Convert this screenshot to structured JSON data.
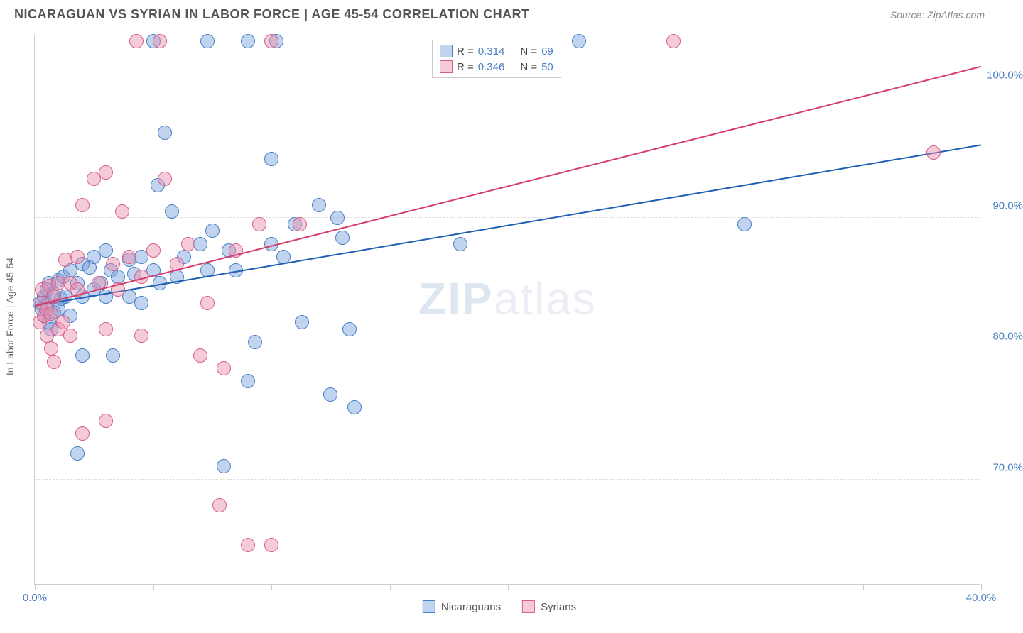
{
  "header": {
    "title": "NICARAGUAN VS SYRIAN IN LABOR FORCE | AGE 45-54 CORRELATION CHART",
    "source": "Source: ZipAtlas.com"
  },
  "watermark": {
    "bold": "ZIP",
    "light": "atlas"
  },
  "chart": {
    "type": "scatter",
    "y_axis_title": "In Labor Force | Age 45-54",
    "xlim": [
      0,
      40
    ],
    "ylim": [
      62,
      104
    ],
    "x_ticks": [
      0,
      5,
      10,
      15,
      20,
      25,
      30,
      35,
      40
    ],
    "x_tick_labels": {
      "0": "0.0%",
      "40": "40.0%"
    },
    "y_gridlines": [
      70,
      80,
      90,
      100
    ],
    "y_tick_labels": {
      "70": "70.0%",
      "80": "80.0%",
      "90": "90.0%",
      "100": "100.0%"
    },
    "background_color": "#ffffff",
    "grid_color": "#dddddd",
    "axis_line_color": "#cccccc",
    "tick_label_color": "#4a7fc4",
    "point_radius": 10,
    "series": [
      {
        "name": "Nicaraguans",
        "fill": "rgba(115, 160, 220, 0.45)",
        "stroke": "#4a7fc4",
        "R": "0.314",
        "N": "69",
        "trend": {
          "x1": 0,
          "y1": 83.2,
          "x2": 40,
          "y2": 95.5,
          "color": "#1e5fb3"
        },
        "points": [
          [
            0.2,
            83.5
          ],
          [
            0.3,
            83.0
          ],
          [
            0.4,
            82.5
          ],
          [
            0.4,
            84.0
          ],
          [
            0.5,
            83.3
          ],
          [
            0.5,
            84.5
          ],
          [
            0.6,
            85.0
          ],
          [
            0.6,
            82.0
          ],
          [
            0.7,
            81.5
          ],
          [
            0.8,
            82.8
          ],
          [
            0.8,
            84.2
          ],
          [
            1.0,
            85.2
          ],
          [
            1.0,
            83.0
          ],
          [
            1.1,
            83.8
          ],
          [
            1.2,
            85.5
          ],
          [
            1.3,
            84.0
          ],
          [
            1.5,
            86.0
          ],
          [
            1.5,
            82.5
          ],
          [
            1.8,
            85.0
          ],
          [
            1.8,
            72.0
          ],
          [
            2.0,
            86.5
          ],
          [
            2.0,
            79.5
          ],
          [
            2.0,
            84.0
          ],
          [
            2.3,
            86.2
          ],
          [
            2.5,
            87.0
          ],
          [
            2.5,
            84.5
          ],
          [
            2.8,
            85.0
          ],
          [
            3.0,
            84.0
          ],
          [
            3.0,
            87.5
          ],
          [
            3.2,
            86.0
          ],
          [
            3.3,
            79.5
          ],
          [
            3.5,
            85.5
          ],
          [
            4.0,
            84.0
          ],
          [
            4.0,
            86.8
          ],
          [
            4.2,
            85.7
          ],
          [
            4.5,
            87.0
          ],
          [
            4.5,
            83.5
          ],
          [
            5.0,
            103.5
          ],
          [
            5.0,
            86.0
          ],
          [
            5.2,
            92.5
          ],
          [
            5.3,
            85.0
          ],
          [
            5.5,
            96.5
          ],
          [
            5.8,
            90.5
          ],
          [
            6.0,
            85.5
          ],
          [
            6.3,
            87.0
          ],
          [
            7.0,
            88.0
          ],
          [
            7.3,
            103.5
          ],
          [
            7.3,
            86.0
          ],
          [
            7.5,
            89.0
          ],
          [
            8.0,
            71.0
          ],
          [
            8.2,
            87.5
          ],
          [
            8.5,
            86.0
          ],
          [
            9.0,
            103.5
          ],
          [
            9.0,
            77.5
          ],
          [
            9.3,
            80.5
          ],
          [
            10.0,
            94.5
          ],
          [
            10.0,
            88.0
          ],
          [
            10.2,
            103.5
          ],
          [
            10.5,
            87.0
          ],
          [
            11.0,
            89.5
          ],
          [
            11.3,
            82.0
          ],
          [
            12.0,
            91.0
          ],
          [
            12.5,
            76.5
          ],
          [
            12.8,
            90.0
          ],
          [
            13.0,
            88.5
          ],
          [
            13.3,
            81.5
          ],
          [
            13.5,
            75.5
          ],
          [
            18.0,
            88.0
          ],
          [
            23.0,
            103.5
          ],
          [
            30.0,
            89.5
          ]
        ]
      },
      {
        "name": "Syrians",
        "fill": "rgba(235, 140, 170, 0.45)",
        "stroke": "#d85f8a",
        "R": "0.346",
        "N": "50",
        "trend": {
          "x1": 0,
          "y1": 83.2,
          "x2": 40,
          "y2": 101.5,
          "color": "#d63d6e"
        },
        "points": [
          [
            0.2,
            82.0
          ],
          [
            0.3,
            83.5
          ],
          [
            0.3,
            84.5
          ],
          [
            0.4,
            82.5
          ],
          [
            0.5,
            81.0
          ],
          [
            0.5,
            83.0
          ],
          [
            0.6,
            84.8
          ],
          [
            0.7,
            80.0
          ],
          [
            0.7,
            82.7
          ],
          [
            0.8,
            79.0
          ],
          [
            0.8,
            84.0
          ],
          [
            1.0,
            81.5
          ],
          [
            1.0,
            85.0
          ],
          [
            1.2,
            82.0
          ],
          [
            1.3,
            86.8
          ],
          [
            1.5,
            85.0
          ],
          [
            1.5,
            81.0
          ],
          [
            1.8,
            84.5
          ],
          [
            1.8,
            87.0
          ],
          [
            2.0,
            91.0
          ],
          [
            2.0,
            73.5
          ],
          [
            2.5,
            93.0
          ],
          [
            2.7,
            85.0
          ],
          [
            3.0,
            93.5
          ],
          [
            3.0,
            81.5
          ],
          [
            3.0,
            74.5
          ],
          [
            3.3,
            86.5
          ],
          [
            3.5,
            84.5
          ],
          [
            3.7,
            90.5
          ],
          [
            4.0,
            87.0
          ],
          [
            4.3,
            103.5
          ],
          [
            4.5,
            85.5
          ],
          [
            4.5,
            81.0
          ],
          [
            5.0,
            87.5
          ],
          [
            5.3,
            103.5
          ],
          [
            5.5,
            93.0
          ],
          [
            6.0,
            86.5
          ],
          [
            6.5,
            88.0
          ],
          [
            7.0,
            79.5
          ],
          [
            7.3,
            83.5
          ],
          [
            7.8,
            68.0
          ],
          [
            8.0,
            78.5
          ],
          [
            8.5,
            87.5
          ],
          [
            9.0,
            65.0
          ],
          [
            9.5,
            89.5
          ],
          [
            10.0,
            65.0
          ],
          [
            10.0,
            103.5
          ],
          [
            11.2,
            89.5
          ],
          [
            27.0,
            103.5
          ],
          [
            38.0,
            95.0
          ]
        ]
      }
    ]
  },
  "legend_top_label_R": "R =",
  "legend_top_label_N": "N ="
}
